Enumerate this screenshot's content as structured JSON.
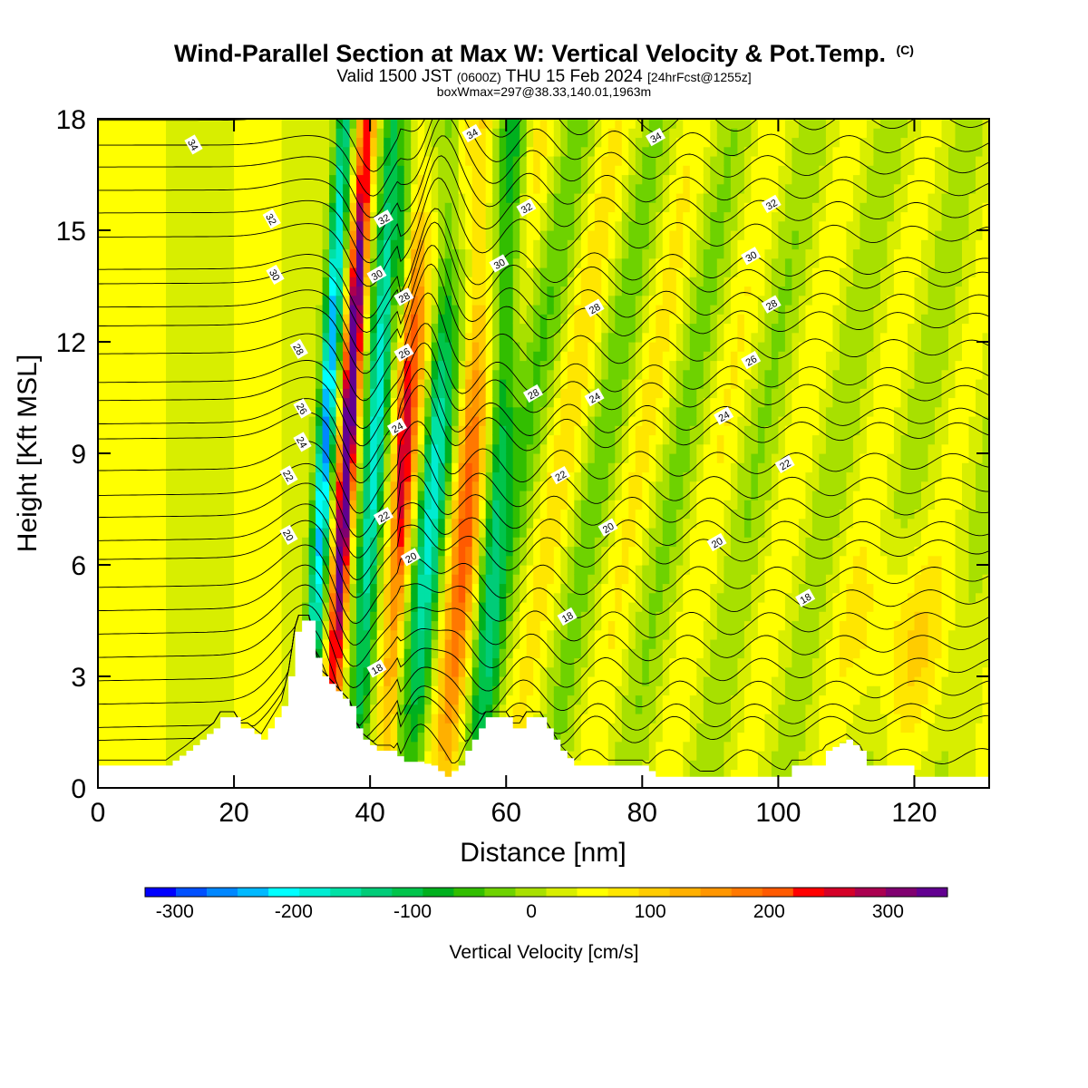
{
  "title": {
    "main": "Wind-Parallel Section at Max W: Vertical Velocity & Pot.Temp.",
    "copyright": "(C)",
    "valid_prefix": "Valid 1500 JST",
    "valid_utc": "(0600Z)",
    "valid_date": "THU 15 Feb 2024",
    "forecast": "[24hrFcst@1255z]",
    "box_info": "boxWmax=297@38.33,140.01,1963m"
  },
  "chart_data": {
    "type": "heatmap",
    "xlabel": "Distance [nm]",
    "ylabel": "Height [Kft MSL]",
    "xlim": [
      0,
      131
    ],
    "ylim": [
      0,
      18
    ],
    "x_ticks": [
      0,
      20,
      40,
      60,
      80,
      100,
      120
    ],
    "y_ticks": [
      0,
      3,
      6,
      9,
      12,
      15,
      18
    ],
    "grid": false,
    "colorbar": {
      "label": "Vertical Velocity [cm/s]",
      "min": -325,
      "max": 350,
      "step": 25,
      "tick_values": [
        -300,
        -200,
        -100,
        0,
        100,
        200,
        300
      ],
      "colors": [
        "#0000ff",
        "#0050ff",
        "#0087ff",
        "#00b9ff",
        "#00ffff",
        "#00ecd2",
        "#00e1a5",
        "#00cc78",
        "#00c44b",
        "#00b01e",
        "#32be00",
        "#6ed200",
        "#a8e000",
        "#d8ee00",
        "#ffff00",
        "#ffe600",
        "#ffcc00",
        "#ffb000",
        "#ff9600",
        "#ff7800",
        "#ff5a00",
        "#ff0000",
        "#d40028",
        "#aa0050",
        "#800070",
        "#620090"
      ]
    },
    "terrain_kft": [
      [
        0,
        0.6
      ],
      [
        10,
        0.6
      ],
      [
        13,
        1.0
      ],
      [
        15,
        1.3
      ],
      [
        17,
        1.6
      ],
      [
        18,
        1.9
      ],
      [
        20,
        1.9
      ],
      [
        21,
        1.6
      ],
      [
        22,
        1.6
      ],
      [
        24,
        1.3
      ],
      [
        25,
        1.6
      ],
      [
        26,
        1.9
      ],
      [
        27,
        2.2
      ],
      [
        28,
        3.0
      ],
      [
        29,
        4.2
      ],
      [
        29.5,
        4.5
      ],
      [
        31,
        4.5
      ],
      [
        32,
        3.5
      ],
      [
        33,
        3.0
      ],
      [
        35,
        2.6
      ],
      [
        37,
        2.2
      ],
      [
        38,
        1.6
      ],
      [
        39,
        1.3
      ],
      [
        41,
        1.0
      ],
      [
        43,
        1.0
      ],
      [
        45,
        0.7
      ],
      [
        47,
        0.7
      ],
      [
        49,
        0.6
      ],
      [
        51,
        0.3
      ],
      [
        53,
        0.6
      ],
      [
        54,
        1.0
      ],
      [
        56,
        1.6
      ],
      [
        57,
        1.9
      ],
      [
        60,
        1.9
      ],
      [
        61,
        1.6
      ],
      [
        62,
        1.6
      ],
      [
        63,
        1.9
      ],
      [
        65,
        1.9
      ],
      [
        66,
        1.6
      ],
      [
        68,
        1.0
      ],
      [
        70,
        0.6
      ],
      [
        80,
        0.6
      ],
      [
        82,
        0.3
      ],
      [
        101,
        0.3
      ],
      [
        102,
        0.6
      ],
      [
        106,
        0.6
      ],
      [
        107,
        1.0
      ],
      [
        110,
        1.3
      ],
      [
        112,
        1.0
      ],
      [
        113,
        0.6
      ],
      [
        119,
        0.6
      ],
      [
        120,
        0.3
      ],
      [
        131,
        0.3
      ]
    ],
    "theta_contours": [
      {
        "level": 18,
        "base_kft": 1.5
      },
      {
        "level": 20,
        "base_kft": 6.3
      },
      {
        "level": 22,
        "base_kft": 8.0
      },
      {
        "level": 24,
        "base_kft": 9.5
      },
      {
        "level": 26,
        "base_kft": 11.0
      },
      {
        "level": 28,
        "base_kft": 12.5
      },
      {
        "level": 30,
        "base_kft": 14.0
      },
      {
        "level": 32,
        "base_kft": 15.5
      },
      {
        "level": 34,
        "base_kft": 17.3
      }
    ],
    "contour_labels": [
      {
        "text": "34",
        "x": 14,
        "y": 17.3
      },
      {
        "text": "32",
        "x": 25.5,
        "y": 15.3
      },
      {
        "text": "30",
        "x": 26,
        "y": 13.8
      },
      {
        "text": "28",
        "x": 29.5,
        "y": 11.8
      },
      {
        "text": "26",
        "x": 30,
        "y": 10.2
      },
      {
        "text": "24",
        "x": 30,
        "y": 9.3
      },
      {
        "text": "22",
        "x": 28,
        "y": 8.4
      },
      {
        "text": "20",
        "x": 28,
        "y": 6.8
      },
      {
        "text": "32",
        "x": 42,
        "y": 15.3
      },
      {
        "text": "30",
        "x": 41,
        "y": 13.8
      },
      {
        "text": "28",
        "x": 45,
        "y": 13.2
      },
      {
        "text": "26",
        "x": 45,
        "y": 11.7
      },
      {
        "text": "24",
        "x": 44,
        "y": 9.7
      },
      {
        "text": "22",
        "x": 42,
        "y": 7.3
      },
      {
        "text": "20",
        "x": 46,
        "y": 6.2
      },
      {
        "text": "18",
        "x": 41,
        "y": 3.2
      },
      {
        "text": "34",
        "x": 55,
        "y": 17.6
      },
      {
        "text": "32",
        "x": 63,
        "y": 15.6
      },
      {
        "text": "30",
        "x": 59,
        "y": 14.1
      },
      {
        "text": "28",
        "x": 64,
        "y": 10.6
      },
      {
        "text": "28",
        "x": 73,
        "y": 12.9
      },
      {
        "text": "24",
        "x": 73,
        "y": 10.5
      },
      {
        "text": "22",
        "x": 68,
        "y": 8.4
      },
      {
        "text": "20",
        "x": 75,
        "y": 7.0
      },
      {
        "text": "18",
        "x": 69,
        "y": 4.6
      },
      {
        "text": "34",
        "x": 82,
        "y": 17.5
      },
      {
        "text": "32",
        "x": 99,
        "y": 15.7
      },
      {
        "text": "30",
        "x": 96,
        "y": 14.3
      },
      {
        "text": "28",
        "x": 99,
        "y": 13.0
      },
      {
        "text": "26",
        "x": 96,
        "y": 11.5
      },
      {
        "text": "24",
        "x": 92,
        "y": 10.0
      },
      {
        "text": "22",
        "x": 101,
        "y": 8.7
      },
      {
        "text": "20",
        "x": 91,
        "y": 6.6
      },
      {
        "text": "18",
        "x": 104,
        "y": 5.1
      }
    ]
  }
}
